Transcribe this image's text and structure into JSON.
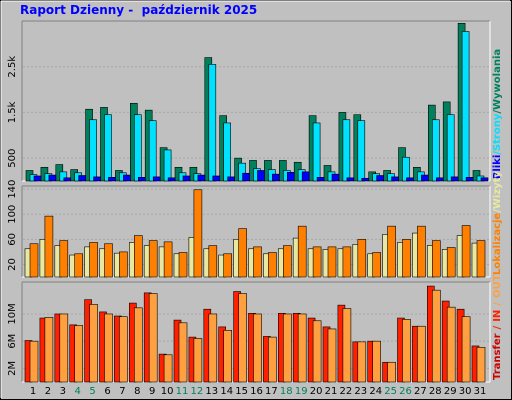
{
  "chart_data": [
    {
      "type": "bar",
      "title": "Raport Dzienny -  październik 2025",
      "ylim": [
        0,
        3500
      ],
      "yticks": [
        500,
        {
          "value": 1500,
          "label": "1.5k"
        },
        {
          "value": 2500,
          "label": "2.5k"
        }
      ],
      "grid": true,
      "legend_separator": "/",
      "legend_reverse": true,
      "series": [
        {
          "name": "Wywolania",
          "color": "#00805C",
          "values": [
            230,
            300,
            360,
            250,
            1570,
            1610,
            230,
            1700,
            1550,
            730,
            300,
            300,
            2700,
            1430,
            500,
            450,
            450,
            450,
            410,
            1430,
            340,
            1500,
            1450,
            200,
            230,
            730,
            300,
            1660,
            1730,
            3450,
            230
          ]
        },
        {
          "name": "Strony",
          "color": "#00E0FF",
          "values": [
            140,
            160,
            200,
            180,
            1340,
            1450,
            180,
            1450,
            1320,
            680,
            180,
            160,
            2550,
            1270,
            390,
            270,
            250,
            230,
            250,
            1270,
            200,
            1340,
            1320,
            160,
            160,
            520,
            200,
            1340,
            1450,
            3270,
            110
          ]
        },
        {
          "name": "Pliki",
          "color": "#0000FF",
          "values": [
            110,
            130,
            70,
            120,
            90,
            80,
            130,
            80,
            90,
            70,
            110,
            130,
            110,
            90,
            170,
            230,
            150,
            190,
            200,
            80,
            150,
            70,
            60,
            120,
            90,
            70,
            130,
            70,
            90,
            80,
            70
          ]
        }
      ]
    },
    {
      "type": "bar",
      "ylim": [
        0,
        145
      ],
      "yticks": [
        20,
        60,
        100,
        140
      ],
      "grid": true,
      "legend_separator": "/",
      "legend_reverse": true,
      "series": [
        {
          "name": "Wizyty",
          "color": "#E8E8A0",
          "values": [
            45,
            60,
            50,
            35,
            48,
            45,
            38,
            55,
            50,
            48,
            37,
            63,
            45,
            35,
            60,
            45,
            37,
            45,
            62,
            45,
            44,
            45,
            52,
            37,
            68,
            55,
            70,
            50,
            44,
            66,
            54
          ]
        },
        {
          "name": "Lokalizacje",
          "color": "#FF8000",
          "values": [
            53,
            97,
            58,
            37,
            55,
            53,
            40,
            66,
            58,
            56,
            39,
            139,
            50,
            37,
            77,
            48,
            39,
            50,
            81,
            48,
            48,
            48,
            60,
            39,
            81,
            60,
            81,
            58,
            47,
            82,
            58
          ]
        }
      ]
    },
    {
      "type": "bar",
      "ylim": [
        0,
        14.7
      ],
      "yticks": [
        {
          "value": 2,
          "label": "2M"
        },
        {
          "value": 6,
          "label": "6M"
        },
        {
          "value": 10,
          "label": "10M"
        }
      ],
      "grid": true,
      "ylabel": "Transfer",
      "ylabel_color": "#CC0000",
      "legend_separator": "/",
      "legend_reverse": false,
      "categories": [
        "1",
        "2",
        "3",
        "4",
        "5",
        "6",
        "7",
        "8",
        "9",
        "10",
        "11",
        "12",
        "13",
        "14",
        "15",
        "16",
        "17",
        "18",
        "19",
        "20",
        "21",
        "22",
        "23",
        "24",
        "25",
        "26",
        "27",
        "28",
        "29",
        "30",
        "31"
      ],
      "category_colors": [
        "#000000",
        "#000000",
        "#000000",
        "#00805C",
        "#00805C",
        "#000000",
        "#000000",
        "#000000",
        "#000000",
        "#000000",
        "#00805C",
        "#00805C",
        "#000000",
        "#000000",
        "#000000",
        "#000000",
        "#000000",
        "#00805C",
        "#00805C",
        "#000000",
        "#000000",
        "#000000",
        "#000000",
        "#000000",
        "#00805C",
        "#00805C",
        "#000000",
        "#000000",
        "#000000",
        "#000000",
        "#000000"
      ],
      "series": [
        {
          "name": "IN",
          "color": "#FF2000",
          "values": [
            6.1,
            9.4,
            10.0,
            8.4,
            12.1,
            10.3,
            9.7,
            11.6,
            13.1,
            4.1,
            9.1,
            6.6,
            10.7,
            8.1,
            13.3,
            10.1,
            6.7,
            10.1,
            10.1,
            9.4,
            8.1,
            11.3,
            5.9,
            6.0,
            2.9,
            9.4,
            8.2,
            14.1,
            11.9,
            10.7,
            5.3
          ]
        },
        {
          "name": "OUT",
          "color": "#FFA040",
          "values": [
            6.0,
            9.5,
            10.0,
            8.3,
            11.4,
            10.0,
            9.6,
            10.9,
            13.0,
            4.0,
            8.7,
            6.4,
            10.0,
            7.6,
            13.0,
            10.0,
            6.6,
            10.0,
            10.0,
            9.0,
            7.8,
            10.8,
            5.9,
            6.0,
            2.9,
            9.2,
            8.2,
            13.5,
            11.0,
            9.6,
            5.1
          ]
        }
      ]
    }
  ]
}
